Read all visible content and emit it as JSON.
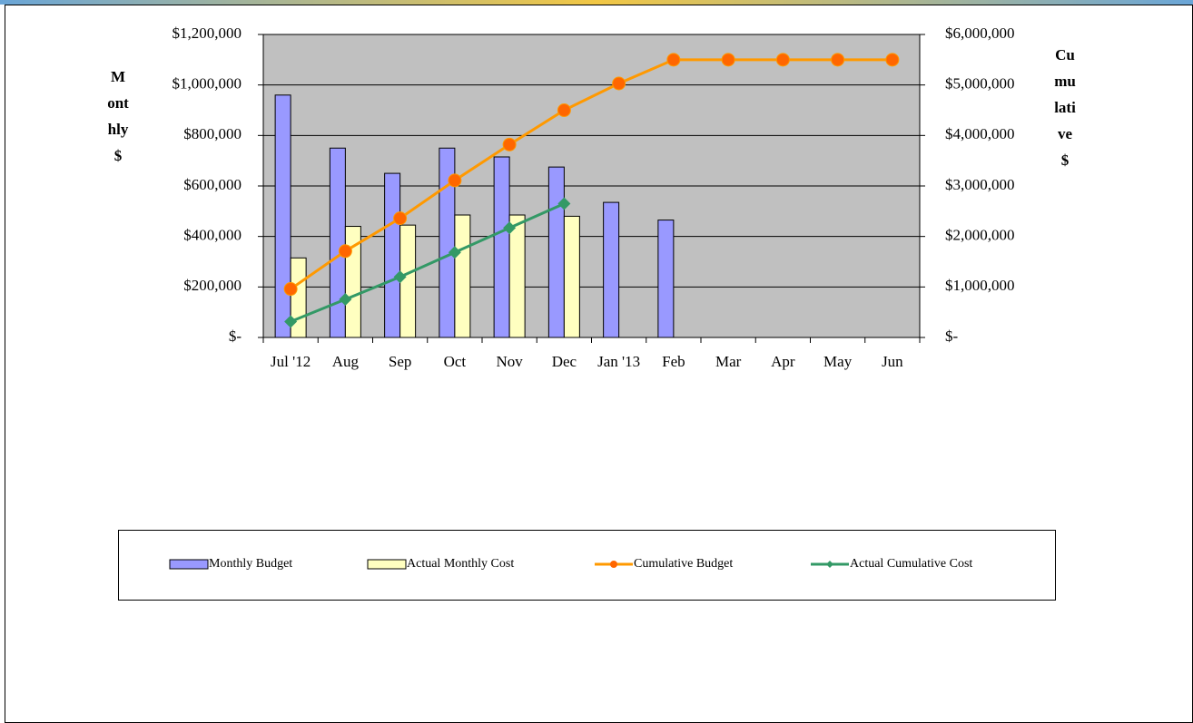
{
  "chart_data": {
    "type": "combo",
    "y_label": "Monthly $",
    "y2_label": "Cumulative $",
    "categories": [
      "Jul '12",
      "Aug",
      "Sep",
      "Oct",
      "Nov",
      "Dec",
      "Jan '13",
      "Feb",
      "Mar",
      "Apr",
      "May",
      "Jun"
    ],
    "ylim": [
      0,
      1200000
    ],
    "yticks": [
      {
        "value": 0,
        "label": "$-"
      },
      {
        "value": 200000,
        "label": "$200,000"
      },
      {
        "value": 400000,
        "label": "$400,000"
      },
      {
        "value": 600000,
        "label": "$600,000"
      },
      {
        "value": 800000,
        "label": "$800,000"
      },
      {
        "value": 1000000,
        "label": "$1,000,000"
      },
      {
        "value": 1200000,
        "label": "$1,200,000"
      }
    ],
    "y2lim": [
      0,
      6000000
    ],
    "y2ticks": [
      {
        "value": 0,
        "label": "$-"
      },
      {
        "value": 1000000,
        "label": "$1,000,000"
      },
      {
        "value": 2000000,
        "label": "$2,000,000"
      },
      {
        "value": 3000000,
        "label": "$3,000,000"
      },
      {
        "value": 4000000,
        "label": "$4,000,000"
      },
      {
        "value": 5000000,
        "label": "$5,000,000"
      },
      {
        "value": 6000000,
        "label": "$6,000,000"
      }
    ],
    "grid": true,
    "legend": "bottom",
    "series": [
      {
        "name": "Monthly Budget",
        "type": "bar",
        "color": "#9999ff",
        "values": [
          960000,
          750000,
          650000,
          750000,
          715000,
          675000,
          535000,
          465000,
          null,
          null,
          null,
          null
        ]
      },
      {
        "name": "Actual Monthly Cost",
        "type": "bar",
        "color": "#ffffc0",
        "values": [
          315000,
          440000,
          445000,
          485000,
          485000,
          480000,
          null,
          null,
          null,
          null,
          null,
          null
        ]
      },
      {
        "name": "Cumulative Budget",
        "type": "line",
        "axis": "y2",
        "color": "#ff9900",
        "marker": "circle",
        "values": [
          960000,
          1710000,
          2360000,
          3110000,
          3820000,
          4500000,
          5030000,
          5500000,
          5500000,
          5500000,
          5500000,
          5500000
        ]
      },
      {
        "name": "Actual Cumulative Cost",
        "type": "line",
        "axis": "y2",
        "color": "#339966",
        "marker": "diamond",
        "values": [
          315000,
          755000,
          1200000,
          1685000,
          2170000,
          2650000,
          null,
          null,
          null,
          null,
          null,
          null
        ]
      }
    ]
  }
}
